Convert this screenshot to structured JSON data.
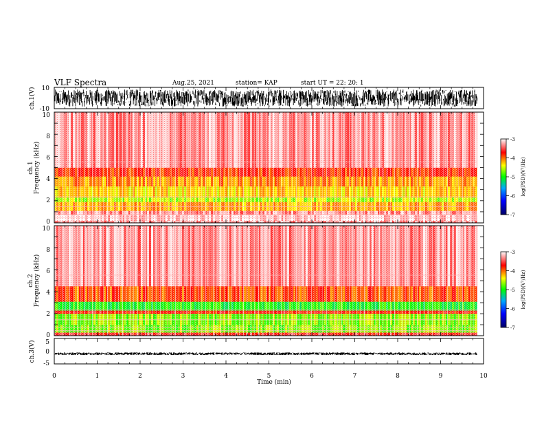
{
  "header": {
    "title": "VLF Spectra",
    "date": "Aug.25, 2021",
    "station": "station= KAP",
    "start": "start  UT =   22: 20: 1"
  },
  "colors": {
    "cmap": [
      "#000066",
      "#0000ff",
      "#00aaff",
      "#00ff00",
      "#ffff00",
      "#ff0000",
      "#ffffff"
    ],
    "trace": "#000000"
  },
  "chart_data": [
    {
      "type": "line",
      "name": "ch1-waveform",
      "ylabel": "ch.1(V)",
      "ylim": [
        -10,
        10
      ],
      "y_ticks": [
        "10",
        "-10"
      ],
      "x_range": [
        0,
        10
      ],
      "data_extent_min": [
        0,
        9.85
      ],
      "description_values": {
        "typical_range_V": [
          -8,
          8
        ]
      }
    },
    {
      "type": "heatmap",
      "name": "ch1-spectrogram",
      "ylabel": "ch.1\nFrequency (kHz)",
      "ylim": [
        0,
        10
      ],
      "y_ticks": [
        "0",
        "2",
        "4",
        "6",
        "8",
        "10"
      ],
      "x_range": [
        0,
        10
      ],
      "data_extent_min": [
        0,
        9.85
      ],
      "bands": [
        {
          "f": [
            0.0,
            0.2
          ],
          "level": -3.3
        },
        {
          "f": [
            0.2,
            0.7
          ],
          "level": -3.1
        },
        {
          "f": [
            0.7,
            1.1
          ],
          "level": -3.3
        },
        {
          "f": [
            1.1,
            1.9
          ],
          "level": -4.2
        },
        {
          "f": [
            1.9,
            2.3
          ],
          "level": -4.6
        },
        {
          "f": [
            2.3,
            3.3
          ],
          "level": -4.3
        },
        {
          "f": [
            3.3,
            4.2
          ],
          "level": -4.1
        },
        {
          "f": [
            4.2,
            5.0
          ],
          "level": -3.8
        },
        {
          "f": [
            5.0,
            10.0
          ],
          "level": -3.3
        }
      ],
      "colorbar": {
        "label": "log(PSD)(V²/Hz)",
        "range": [
          -7,
          -3
        ],
        "ticks": [
          "-3",
          "-4",
          "-5",
          "-6",
          "-7"
        ]
      }
    },
    {
      "type": "heatmap",
      "name": "ch2-spectrogram",
      "ylabel": "ch.2\nFrequency (kHz)",
      "ylim": [
        0,
        10
      ],
      "y_ticks": [
        "0",
        "2",
        "4",
        "6",
        "8",
        "10"
      ],
      "x_range": [
        0,
        10
      ],
      "data_extent_min": [
        0,
        9.85
      ],
      "bands": [
        {
          "f": [
            0.0,
            0.3
          ],
          "level": -3.6
        },
        {
          "f": [
            0.3,
            1.0
          ],
          "level": -4.7
        },
        {
          "f": [
            1.0,
            2.0
          ],
          "level": -4.7
        },
        {
          "f": [
            2.0,
            2.3
          ],
          "level": -3.7
        },
        {
          "f": [
            2.3,
            3.1
          ],
          "level": -5.0
        },
        {
          "f": [
            3.1,
            4.5
          ],
          "level": -3.9
        },
        {
          "f": [
            4.5,
            10.0
          ],
          "level": -3.3
        }
      ],
      "colorbar": {
        "label": "log(PSD)(V²/Hz)",
        "range": [
          -7,
          -3
        ],
        "ticks": [
          "-3",
          "-4",
          "-5",
          "-6",
          "-7"
        ]
      }
    },
    {
      "type": "line",
      "name": "ch3-waveform",
      "ylabel": "ch.3(V)",
      "ylim": [
        -5,
        5
      ],
      "y_ticks": [
        "5",
        "0",
        "-5"
      ],
      "x_range": [
        0,
        10
      ],
      "data_extent_min": [
        0,
        9.85
      ],
      "description_values": {
        "typical_range_V": [
          -1.5,
          -0.5
        ]
      }
    }
  ],
  "x_axis": {
    "label": "Time (min)",
    "range": [
      0,
      10
    ],
    "ticks": [
      "0",
      "1",
      "2",
      "3",
      "4",
      "5",
      "6",
      "7",
      "8",
      "9",
      "10"
    ]
  }
}
